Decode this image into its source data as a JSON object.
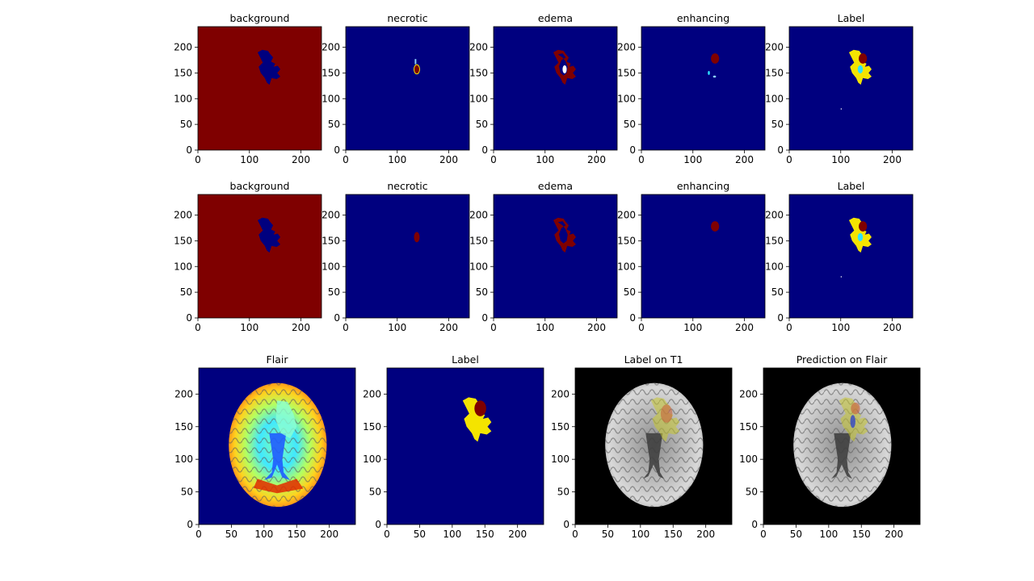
{
  "figure": {
    "colors": {
      "jet_low": "#00007f",
      "jet_high": "#7f0000",
      "yellow": "#f4e400",
      "cyan": "#2fe0ff",
      "light_blue": "#8fd3ff",
      "white": "#ffffff",
      "black": "#000000",
      "overlay_yellow": "#c8c832",
      "overlay_red": "#c8643c",
      "overlay_blue": "#3246c8"
    },
    "rows": [
      {
        "panels": [
          {
            "title": "background",
            "type": "heatmap",
            "colormap": "jet",
            "xlim": [
              0,
              240
            ],
            "ylim": [
              0,
              240
            ],
            "xticks": [
              0,
              100,
              200
            ],
            "yticks": [
              0,
              50,
              100,
              150,
              200
            ],
            "background": "jet_high",
            "regions": [
              "tumor_hole"
            ]
          },
          {
            "title": "necrotic",
            "type": "heatmap",
            "colormap": "jet",
            "xlim": [
              0,
              240
            ],
            "ylim": [
              0,
              240
            ],
            "xticks": [
              0,
              100,
              200
            ],
            "yticks": [
              0,
              50,
              100,
              150,
              200
            ],
            "background": "jet_low",
            "regions": [
              "necrotic_core"
            ]
          },
          {
            "title": "edema",
            "type": "heatmap",
            "colormap": "jet",
            "xlim": [
              0,
              240
            ],
            "ylim": [
              0,
              240
            ],
            "xticks": [
              0,
              100,
              200
            ],
            "yticks": [
              0,
              50,
              100,
              150,
              200
            ],
            "background": "jet_low",
            "regions": [
              "edema"
            ]
          },
          {
            "title": "enhancing",
            "type": "heatmap",
            "colormap": "jet",
            "xlim": [
              0,
              240
            ],
            "ylim": [
              0,
              240
            ],
            "xticks": [
              0,
              100,
              200
            ],
            "yticks": [
              0,
              50,
              100,
              150,
              200
            ],
            "background": "jet_low",
            "regions": [
              "enhancing",
              "enhancing_specks"
            ]
          },
          {
            "title": "Label",
            "type": "heatmap",
            "colormap": "jet",
            "xlim": [
              0,
              240
            ],
            "ylim": [
              0,
              240
            ],
            "xticks": [
              0,
              100,
              200
            ],
            "yticks": [
              0,
              50,
              100,
              150,
              200
            ],
            "background": "jet_low",
            "regions": [
              "label_full"
            ]
          }
        ]
      },
      {
        "panels": [
          {
            "title": "background",
            "type": "heatmap",
            "colormap": "jet",
            "xlim": [
              0,
              240
            ],
            "ylim": [
              0,
              240
            ],
            "xticks": [
              0,
              100,
              200
            ],
            "yticks": [
              0,
              50,
              100,
              150,
              200
            ],
            "background": "jet_high",
            "regions": [
              "tumor_hole"
            ]
          },
          {
            "title": "necrotic",
            "type": "heatmap",
            "colormap": "jet",
            "xlim": [
              0,
              240
            ],
            "ylim": [
              0,
              240
            ],
            "xticks": [
              0,
              100,
              200
            ],
            "yticks": [
              0,
              50,
              100,
              150,
              200
            ],
            "background": "jet_low",
            "regions": [
              "necrotic_pred"
            ]
          },
          {
            "title": "edema",
            "type": "heatmap",
            "colormap": "jet",
            "xlim": [
              0,
              240
            ],
            "ylim": [
              0,
              240
            ],
            "xticks": [
              0,
              100,
              200
            ],
            "yticks": [
              0,
              50,
              100,
              150,
              200
            ],
            "background": "jet_low",
            "regions": [
              "edema_pred"
            ]
          },
          {
            "title": "enhancing",
            "type": "heatmap",
            "colormap": "jet",
            "xlim": [
              0,
              240
            ],
            "ylim": [
              0,
              240
            ],
            "xticks": [
              0,
              100,
              200
            ],
            "yticks": [
              0,
              50,
              100,
              150,
              200
            ],
            "background": "jet_low",
            "regions": [
              "enhancing_pred"
            ]
          },
          {
            "title": "Label",
            "type": "heatmap",
            "colormap": "jet",
            "xlim": [
              0,
              240
            ],
            "ylim": [
              0,
              240
            ],
            "xticks": [
              0,
              100,
              200
            ],
            "yticks": [
              0,
              50,
              100,
              150,
              200
            ],
            "background": "jet_low",
            "regions": [
              "label_full"
            ]
          }
        ]
      },
      {
        "panels": [
          {
            "title": "Flair",
            "type": "image",
            "colormap": "jet",
            "xlim": [
              0,
              240
            ],
            "ylim": [
              0,
              240
            ],
            "xticks": [
              0,
              50,
              100,
              150,
              200
            ],
            "yticks": [
              0,
              50,
              100,
              150,
              200
            ],
            "background": "jet_low",
            "regions": [
              "flair_brain"
            ]
          },
          {
            "title": "Label",
            "type": "heatmap",
            "colormap": "jet",
            "xlim": [
              0,
              240
            ],
            "ylim": [
              0,
              240
            ],
            "xticks": [
              0,
              50,
              100,
              150,
              200
            ],
            "yticks": [
              0,
              50,
              100,
              150,
              200
            ],
            "background": "jet_low",
            "regions": [
              "label_simple"
            ]
          },
          {
            "title": "Label on T1",
            "type": "image",
            "colormap": "gray",
            "xlim": [
              0,
              240
            ],
            "ylim": [
              0,
              240
            ],
            "xticks": [
              0,
              50,
              100,
              150,
              200
            ],
            "yticks": [
              0,
              50,
              100,
              150,
              200
            ],
            "background": "black",
            "regions": [
              "gray_brain",
              "overlay_label"
            ]
          },
          {
            "title": "Prediction on Flair",
            "type": "image",
            "colormap": "gray",
            "xlim": [
              0,
              240
            ],
            "ylim": [
              0,
              240
            ],
            "xticks": [
              0,
              50,
              100,
              150,
              200
            ],
            "yticks": [
              0,
              50,
              100,
              150,
              200
            ],
            "background": "black",
            "regions": [
              "gray_brain",
              "overlay_pred"
            ]
          }
        ]
      }
    ]
  }
}
